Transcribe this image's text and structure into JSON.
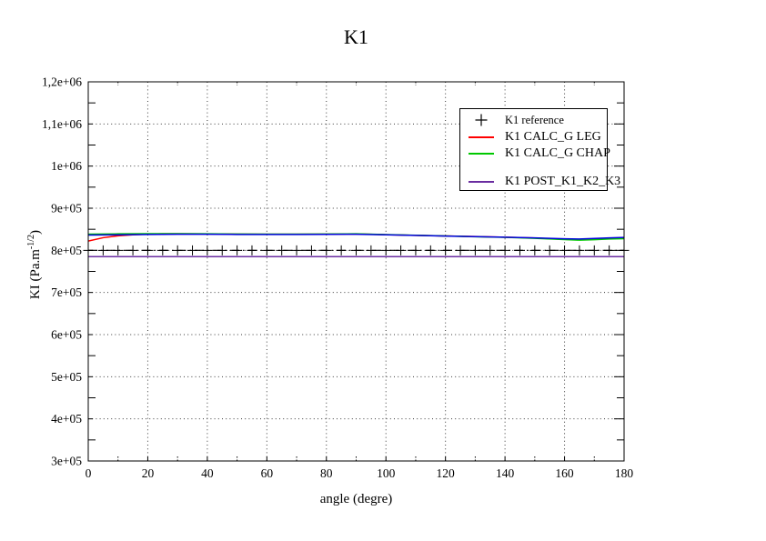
{
  "page": {
    "title": "K1"
  },
  "chart_data": {
    "type": "line",
    "title": "K1",
    "xlabel": "angle (degre)",
    "ylabel": "KI (Pa.m^-1/2)",
    "ylabel_parts": {
      "main": "KI (Pa.m",
      "sup": "-1/2",
      "close": ")"
    },
    "xlim": [
      0,
      180
    ],
    "ylim": [
      300000,
      1200000
    ],
    "xtick_values": [
      0,
      20,
      40,
      60,
      80,
      100,
      120,
      140,
      160,
      180
    ],
    "xtick_labels": [
      "0",
      "20",
      "40",
      "60",
      "80",
      "100",
      "120",
      "140",
      "160",
      "180"
    ],
    "ytick_values": [
      300000,
      400000,
      500000,
      600000,
      700000,
      800000,
      900000,
      1000000,
      1100000,
      1200000
    ],
    "ytick_labels": [
      "3e+05",
      "4e+05",
      "5e+05",
      "6e+05",
      "7e+05",
      "8e+05",
      "9e+05",
      "1e+06",
      "1,1e+06",
      "1,2e+06"
    ],
    "x_minor_step": 10,
    "y_minor_step": 50000,
    "grid": "dotted",
    "legend_position": "top-right-inside",
    "legend": [
      {
        "label": "K1 reference",
        "sample": "plus",
        "color": "#000000"
      },
      {
        "label": "K1 CALC_G LEG",
        "sample": "line",
        "color": "#ff0000"
      },
      {
        "label": "K1 CALC_G CHAP",
        "sample": "line",
        "color": "#00c800"
      },
      {
        "label": "",
        "sample": "none",
        "color": ""
      },
      {
        "label": "K1 POST_K1_K2_K3",
        "sample": "line",
        "color": "#6a2ca0"
      }
    ],
    "series": [
      {
        "name": "K1 CALC_G LEG",
        "color": "#ff0000",
        "line_style": "solid",
        "points": [
          [
            0,
            822000
          ],
          [
            5,
            830000
          ],
          [
            10,
            834500
          ],
          [
            15,
            837000
          ],
          [
            20,
            838500
          ],
          [
            25,
            839200
          ],
          [
            30,
            839200
          ],
          [
            40,
            839000
          ],
          [
            50,
            838600
          ],
          [
            60,
            838300
          ],
          [
            70,
            838300
          ],
          [
            80,
            838600
          ],
          [
            90,
            839000
          ],
          [
            100,
            837200
          ],
          [
            110,
            835600
          ],
          [
            120,
            834200
          ],
          [
            130,
            832800
          ],
          [
            140,
            831200
          ],
          [
            150,
            829200
          ],
          [
            160,
            826200
          ],
          [
            165,
            825200
          ],
          [
            170,
            826500
          ],
          [
            175,
            828000
          ],
          [
            180,
            829200
          ]
        ]
      },
      {
        "name": "K1 CALC_G CHAP",
        "color": "#00c800",
        "line_style": "solid",
        "points": [
          [
            0,
            838500
          ],
          [
            10,
            839200
          ],
          [
            20,
            839600
          ],
          [
            30,
            839600
          ],
          [
            40,
            839200
          ],
          [
            50,
            838800
          ],
          [
            60,
            838400
          ],
          [
            70,
            838400
          ],
          [
            80,
            838800
          ],
          [
            90,
            839200
          ],
          [
            100,
            837400
          ],
          [
            110,
            835800
          ],
          [
            120,
            834200
          ],
          [
            130,
            832400
          ],
          [
            140,
            830800
          ],
          [
            150,
            828600
          ],
          [
            160,
            825600
          ],
          [
            165,
            824200
          ],
          [
            170,
            825200
          ],
          [
            175,
            826800
          ],
          [
            180,
            827800
          ]
        ]
      },
      {
        "name": "",
        "color": "#0000dd",
        "line_style": "solid",
        "points": [
          [
            0,
            836200
          ],
          [
            10,
            836800
          ],
          [
            20,
            837800
          ],
          [
            30,
            838200
          ],
          [
            40,
            838200
          ],
          [
            50,
            837800
          ],
          [
            60,
            837600
          ],
          [
            70,
            837600
          ],
          [
            80,
            838000
          ],
          [
            90,
            838200
          ],
          [
            100,
            836800
          ],
          [
            110,
            835400
          ],
          [
            120,
            834000
          ],
          [
            130,
            832600
          ],
          [
            140,
            831200
          ],
          [
            150,
            829600
          ],
          [
            160,
            827400
          ],
          [
            165,
            826800
          ],
          [
            170,
            828200
          ],
          [
            175,
            829600
          ],
          [
            180,
            830600
          ]
        ]
      },
      {
        "name": "K1 POST_K1_K2_K3",
        "color": "#6a2ca0",
        "line_style": "solid",
        "points": [
          [
            0,
            785000
          ],
          [
            30,
            785000
          ],
          [
            60,
            785000
          ],
          [
            90,
            785000
          ],
          [
            120,
            785000
          ],
          [
            150,
            785000
          ],
          [
            180,
            785000
          ]
        ]
      },
      {
        "name": "K1 reference",
        "color": "#000000",
        "line_style": "dashdot",
        "marker": "plus",
        "marker_step": 5,
        "points": [
          [
            0,
            800000
          ],
          [
            180,
            800000
          ]
        ]
      }
    ]
  }
}
